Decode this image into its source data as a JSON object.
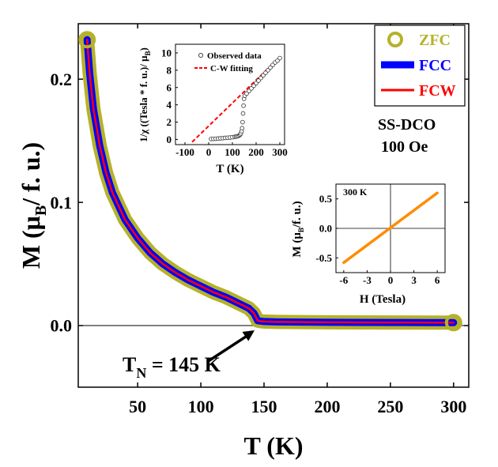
{
  "chart_data": [
    {
      "id": "main",
      "type": "line",
      "title": "",
      "xlabel": "T (K)",
      "ylabel_main": "M (μ",
      "ylabel_sub": "B",
      "ylabel_tail": "/ f. u.)",
      "xlim": [
        3,
        312
      ],
      "ylim": [
        -0.05,
        0.245
      ],
      "x_ticks": [
        50,
        100,
        150,
        200,
        250,
        300
      ],
      "y_ticks": [
        0.0,
        0.1,
        0.2
      ],
      "x_tick_labels": [
        "50",
        "100",
        "150",
        "200",
        "250",
        "300"
      ],
      "y_tick_labels": [
        "0.0",
        "0.1",
        "0.2"
      ],
      "reference_line_y": 0.0,
      "legend": {
        "placement": "top-right",
        "entries": [
          {
            "label": "ZFC",
            "color": "#b5b22a",
            "marker": "open-circle"
          },
          {
            "label": "FCC",
            "color": "#0000ff",
            "marker": "thick-line"
          },
          {
            "label": "FCW",
            "color": "#ff0000",
            "marker": "line"
          }
        ]
      },
      "sample_label": "SS-DCO",
      "field_label": "100 Oe",
      "annotation": {
        "text_main": "T",
        "text_sub": "N",
        "text_tail": " = 145 K",
        "points_to_x": 145,
        "points_to_y": 0.0
      },
      "series": [
        {
          "name": "ZFC",
          "color": "#b5b22a",
          "x": [
            10,
            12,
            15,
            20,
            25,
            30,
            40,
            50,
            60,
            70,
            80,
            90,
            100,
            110,
            120,
            130,
            138,
            142,
            145,
            148,
            150,
            160,
            180,
            200,
            220,
            250,
            280,
            300
          ],
          "y": [
            0.232,
            0.205,
            0.176,
            0.146,
            0.124,
            0.108,
            0.086,
            0.071,
            0.059,
            0.05,
            0.043,
            0.037,
            0.032,
            0.027,
            0.023,
            0.018,
            0.014,
            0.01,
            0.004,
            0.0035,
            0.0033,
            0.003,
            0.0028,
            0.0027,
            0.0026,
            0.0025,
            0.0024,
            0.0024
          ]
        },
        {
          "name": "FCC",
          "color": "#0000ff",
          "x": [
            10,
            12,
            15,
            20,
            25,
            30,
            40,
            50,
            60,
            70,
            80,
            90,
            100,
            110,
            120,
            130,
            138,
            142,
            145,
            148,
            150,
            160,
            180,
            200,
            220,
            250,
            280,
            300
          ],
          "y": [
            0.232,
            0.205,
            0.176,
            0.146,
            0.124,
            0.108,
            0.086,
            0.071,
            0.059,
            0.05,
            0.043,
            0.037,
            0.032,
            0.027,
            0.023,
            0.018,
            0.014,
            0.01,
            0.004,
            0.0035,
            0.0033,
            0.003,
            0.0028,
            0.0027,
            0.0026,
            0.0025,
            0.0024,
            0.0024
          ]
        },
        {
          "name": "FCW",
          "color": "#ff0000",
          "x": [
            10,
            12,
            15,
            20,
            25,
            30,
            40,
            50,
            60,
            70,
            80,
            90,
            100,
            110,
            120,
            130,
            138,
            142,
            145,
            148,
            150,
            160,
            180,
            200,
            220,
            250,
            280,
            300
          ],
          "y": [
            0.232,
            0.205,
            0.176,
            0.146,
            0.124,
            0.108,
            0.086,
            0.071,
            0.059,
            0.05,
            0.043,
            0.037,
            0.032,
            0.027,
            0.023,
            0.018,
            0.014,
            0.01,
            0.004,
            0.0035,
            0.0033,
            0.003,
            0.0028,
            0.0027,
            0.0026,
            0.0025,
            0.0024,
            0.0024
          ]
        }
      ]
    },
    {
      "id": "inset_chi",
      "type": "scatter",
      "placement": "top-center inset",
      "xlabel": "T (K)",
      "ylabel_main": "1/χ ((Tesla * f. u.)/ μ",
      "ylabel_sub": "B",
      "ylabel_tail": ")",
      "xlim": [
        -140,
        320
      ],
      "ylim": [
        -0.6,
        11
      ],
      "x_ticks": [
        -100,
        0,
        100,
        200,
        300
      ],
      "y_ticks": [
        0,
        2,
        4,
        6,
        8,
        10
      ],
      "x_tick_labels": [
        "-100",
        "0",
        "100",
        "200",
        "300"
      ],
      "y_tick_labels": [
        "0",
        "2",
        "4",
        "6",
        "8",
        "10"
      ],
      "legend": {
        "placement": "top-right",
        "entries": [
          {
            "label": "Observed data",
            "color": "#333333",
            "marker": "open-circle"
          },
          {
            "label": "C-W fitting",
            "color": "#ff0000",
            "marker": "dashed-line"
          }
        ]
      },
      "series": [
        {
          "name": "Observed data",
          "color": "#333333",
          "x": [
            10,
            20,
            30,
            40,
            50,
            60,
            70,
            80,
            90,
            100,
            110,
            115,
            120,
            125,
            130,
            133,
            136,
            139,
            141,
            143,
            145,
            147,
            149,
            152,
            160,
            170,
            180,
            190,
            200,
            210,
            220,
            230,
            240,
            250,
            260,
            270,
            280,
            290,
            300
          ],
          "y": [
            0.05,
            0.06,
            0.08,
            0.1,
            0.13,
            0.15,
            0.18,
            0.2,
            0.22,
            0.26,
            0.3,
            0.33,
            0.36,
            0.4,
            0.48,
            0.56,
            0.7,
            0.95,
            1.3,
            2.0,
            3.0,
            3.9,
            4.7,
            5.05,
            5.3,
            5.6,
            5.9,
            6.2,
            6.5,
            6.8,
            7.1,
            7.4,
            7.7,
            8.0,
            8.3,
            8.6,
            8.9,
            9.1,
            9.4
          ]
        },
        {
          "name": "C-W fitting",
          "color": "#ff0000",
          "x": [
            -70,
            300
          ],
          "y": [
            -0.3,
            9.5
          ]
        }
      ]
    },
    {
      "id": "inset_mh",
      "type": "line",
      "placement": "bottom-right inset",
      "label": "300 K",
      "xlabel": "H (Tesla)",
      "ylabel_main": "M (μ",
      "ylabel_sub": "B",
      "ylabel_tail": "/f. u.)",
      "xlim": [
        -7,
        7
      ],
      "ylim": [
        -0.75,
        0.75
      ],
      "x_ticks": [
        -6,
        -3,
        0,
        3,
        6
      ],
      "y_ticks": [
        -0.5,
        0.0,
        0.5
      ],
      "x_tick_labels": [
        "-6",
        "-3",
        "0",
        "3",
        "6"
      ],
      "y_tick_labels": [
        "-0.5",
        "0.0",
        "0.5"
      ],
      "series": [
        {
          "name": "M-H 300 K",
          "color": "#ff8c00",
          "x": [
            -6,
            6
          ],
          "y": [
            -0.58,
            0.6
          ]
        }
      ]
    }
  ]
}
